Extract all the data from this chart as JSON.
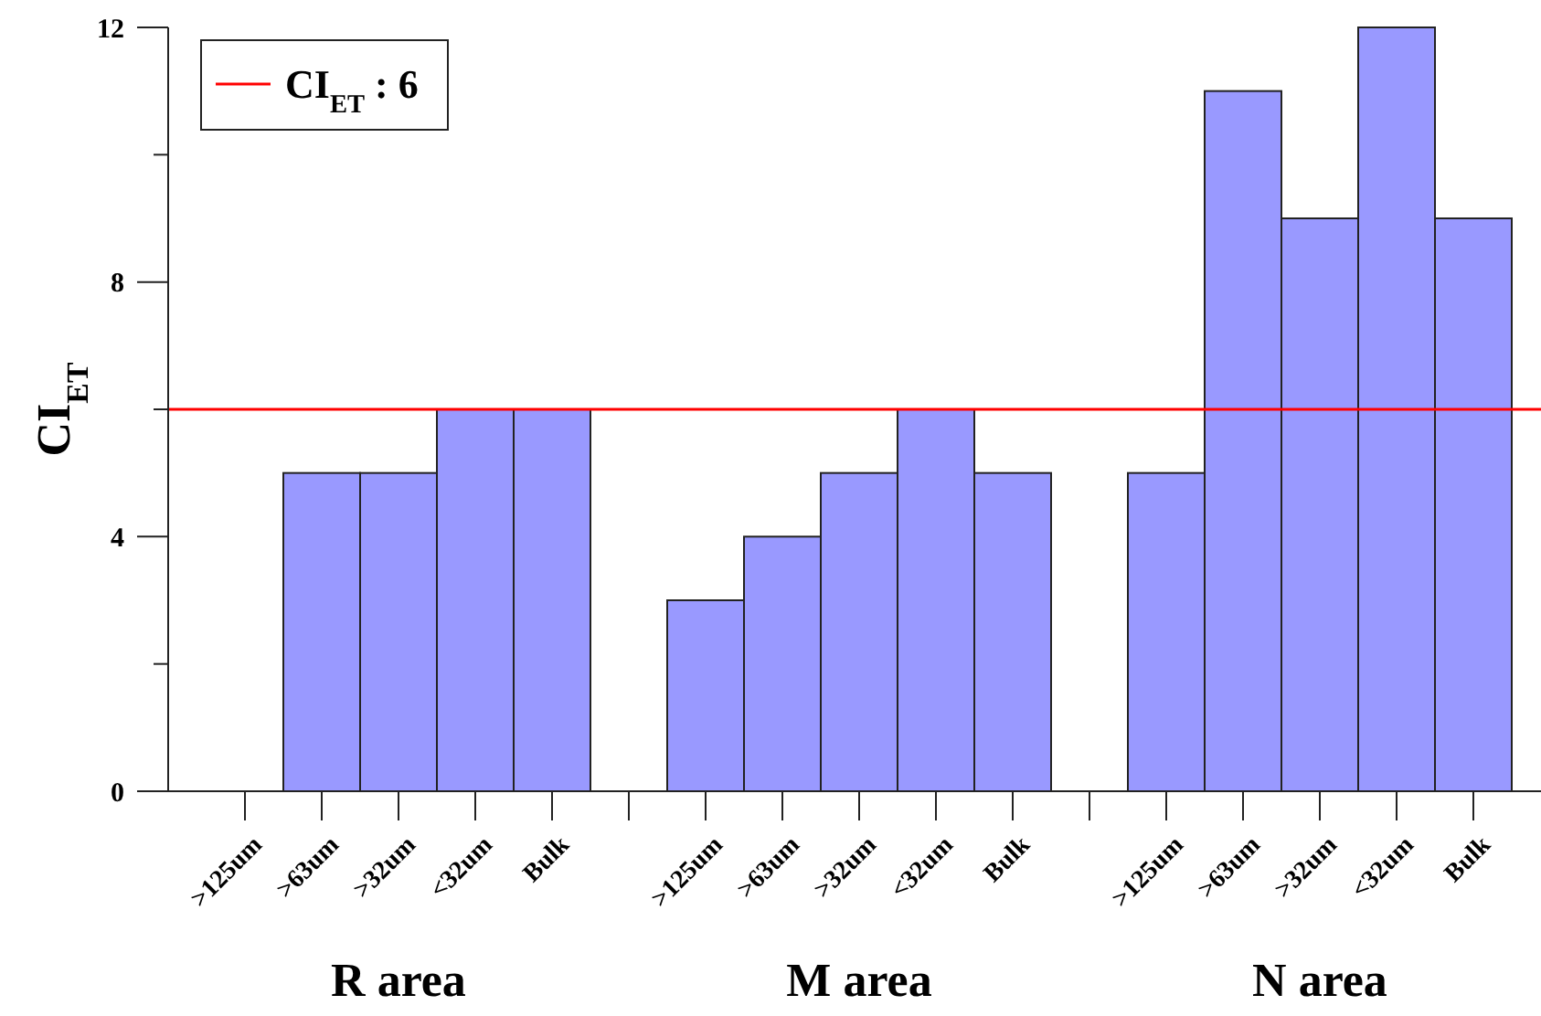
{
  "chart_data": {
    "type": "bar",
    "ylabel": "CI$_{ET}$",
    "categories": [
      ">125um",
      ">63um",
      ">32um",
      "<32um",
      "Bulk",
      null,
      ">125um",
      ">63um",
      ">32um",
      "<32um",
      "Bulk",
      null,
      ">125um",
      ">63um",
      ">32um",
      "<32um",
      "Bulk"
    ],
    "series": [
      {
        "color": "#9999ff",
        "values": [
          0,
          5,
          5,
          6,
          6,
          null,
          3,
          4,
          5,
          6,
          5,
          null,
          5,
          11,
          9,
          12,
          9
        ]
      }
    ],
    "ylim": [
      0,
      12
    ],
    "yticks": [
      0,
      {
        "value": 2,
        "label": null
      },
      4,
      {
        "value": 6,
        "label": null
      },
      8,
      {
        "value": 10,
        "label": null
      },
      12
    ],
    "ref_lines": [
      {
        "axis": "y",
        "value": 6,
        "label": "CI$_{ET}$ : 6",
        "color": "#ff0000"
      }
    ],
    "legend": "top left",
    "annotations": [
      "R area",
      "M area",
      "N area"
    ]
  }
}
